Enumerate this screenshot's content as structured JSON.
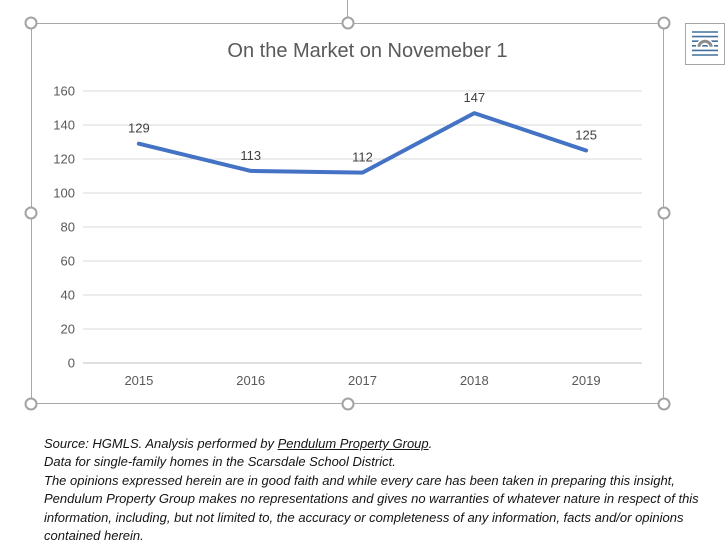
{
  "chart_data": {
    "type": "line",
    "title": "On the Market on Novemeber 1",
    "categories": [
      "2015",
      "2016",
      "2017",
      "2018",
      "2019"
    ],
    "series": [
      {
        "name": "",
        "values": [
          129,
          113,
          112,
          147,
          125
        ]
      }
    ],
    "data_labels": [
      129,
      113,
      112,
      147,
      125
    ],
    "xlabel": "",
    "ylabel": "",
    "ylim": [
      0,
      160
    ],
    "yticks": [
      0,
      20,
      40,
      60,
      80,
      100,
      120,
      140,
      160
    ],
    "grid": true,
    "legend": "none",
    "line_color": "#4472C4"
  },
  "colors": {
    "line": "#4472C4",
    "gridline": "#D9D9D9",
    "axis_line": "#BFBFBF",
    "title_text": "#595959",
    "tick_text": "#595959",
    "data_label_text": "#404040",
    "selection_frame": "#A6A6A6",
    "icon_lines": "#41719C",
    "icon_arch": "#8C8C8C"
  },
  "selection": {
    "handles": [
      "top-left",
      "top-center",
      "top-right",
      "middle-left",
      "middle-right",
      "bottom-left",
      "bottom-center",
      "bottom-right"
    ]
  },
  "icons": {
    "layout_options": "layout-options-icon"
  },
  "footnote": {
    "source_prefix": "Source: HGMLS. Analysis performed by ",
    "source_link": "Pendulum Property Group",
    "source_suffix": ".",
    "data_line": "Data for single-family homes in the Scarsdale School District.",
    "disclaimer": "The opinions expressed herein are in good faith and while every care has been taken in preparing this insight, Pendulum Property Group makes no representations and gives no warranties of whatever nature in respect of this information, including, but not limited to, the accuracy or completeness of any information, facts and/or opinions contained herein."
  }
}
